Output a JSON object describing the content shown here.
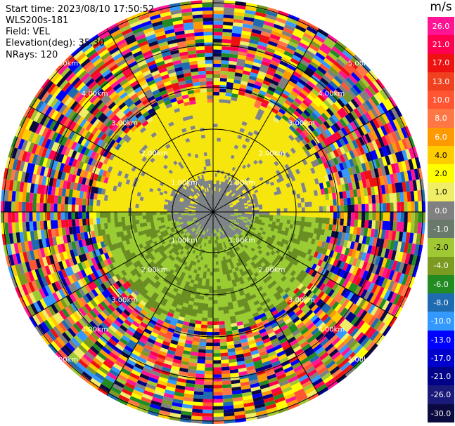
{
  "header": {
    "start_time": "Start time: 2023/08/10 17:50:52",
    "site": "WLS200s-181",
    "field": "Field: VEL",
    "elevation": "Elevation(deg): 35.30",
    "nrays": "NRays: 120"
  },
  "colorbar": {
    "unit": "m/s",
    "ticks": [
      "26.0",
      "21.0",
      "17.0",
      "13.0",
      "10.0",
      "8.0",
      "6.0",
      "4.0",
      "2.0",
      "1.0",
      "0.0",
      "-1.0",
      "-2.0",
      "-4.0",
      "-6.0",
      "-8.0",
      "-10.0",
      "-13.0",
      "-17.0",
      "-21.0",
      "-26.0",
      "-30.0"
    ],
    "colors": [
      "#ff1493",
      "#ff0050",
      "#ee1111",
      "#f04020",
      "#ff5533",
      "#ff7744",
      "#ff9900",
      "#ffcc00",
      "#ffff00",
      "#f0ee66",
      "#808080",
      "#6a7a6a",
      "#a0c832",
      "#7a9a20",
      "#228b22",
      "#1e6bb0",
      "#3399ff",
      "#0000ff",
      "#0000cc",
      "#000088",
      "#1a1a7a",
      "#0a0a40"
    ]
  },
  "range_rings": {
    "labels": [
      "1.00km",
      "2.00km",
      "3.00km",
      "4.00km",
      "5.00km"
    ]
  },
  "ppi": {
    "n_rays": 120
  }
}
